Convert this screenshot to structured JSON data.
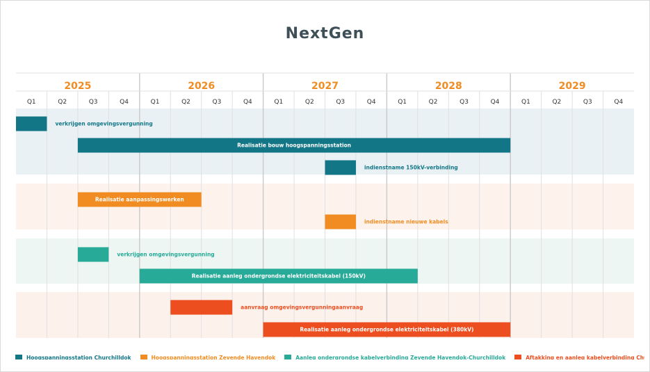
{
  "chart_data": {
    "type": "gantt",
    "title": "NextGen",
    "years": [
      "2025",
      "2026",
      "2027",
      "2028",
      "2029"
    ],
    "quarters": [
      "Q1",
      "Q2",
      "Q3",
      "Q4"
    ],
    "timeline_start": "2025-Q1",
    "timeline_end": "2029-Q4",
    "colors": {
      "year_label": "#f08c22",
      "grid": "#e0e0e0",
      "year_divider": "#c9c9c9"
    },
    "groups": [
      {
        "name": "Hoogspanningsstation Churchilldok",
        "color": "#127687",
        "band_color": "#e9f1f4",
        "tasks": [
          {
            "label": "verkrijgen omgevingsvergunning",
            "start": "2025-Q1",
            "end": "2025-Q1",
            "label_position": "right"
          },
          {
            "label": "Realisatie bouw hoogspanningsstation",
            "start": "2025-Q3",
            "end": "2028-Q4",
            "label_position": "inside"
          },
          {
            "label": "indienstname 150kV-verbinding",
            "start": "2027-Q3",
            "end": "2027-Q3",
            "label_position": "right"
          }
        ]
      },
      {
        "name": "Hoogspanningsstation Zevende Havendok",
        "color": "#f08c22",
        "band_color": "#fdf3ec",
        "tasks": [
          {
            "label": "Realisatie aanpassingswerken",
            "start": "2025-Q3",
            "end": "2026-Q2",
            "label_position": "inside"
          },
          {
            "label": "indienstname nieuwe kabels",
            "start": "2027-Q3",
            "end": "2027-Q3",
            "label_position": "right"
          }
        ]
      },
      {
        "name": "Aanleg ondergrondse kabelverbinding Zevende Havendok-Churchilldok",
        "color": "#27aa97",
        "band_color": "#edf6f3",
        "tasks": [
          {
            "label": "verkrijgen omgevingsvergunning",
            "start": "2025-Q3",
            "end": "2025-Q3",
            "label_position": "right"
          },
          {
            "label": "Realisatie aanleg ondergrondse elektriciteitskabel (150kV)",
            "start": "2026-Q1",
            "end": "2028-Q1",
            "label_position": "inside"
          }
        ]
      },
      {
        "name": "Aftakking en aanleg kabelverbinding Churchilldok-Lillo",
        "color": "#ed4e20",
        "band_color": "#fdf1ec",
        "tasks": [
          {
            "label": "aanvraag omgevingsvergunningaanvraag",
            "start": "2026-Q2",
            "end": "2026-Q3",
            "label_position": "right"
          },
          {
            "label": "Realisatie aanleg ondergrondse elektriciteitskabel (380kV)",
            "start": "2027-Q1",
            "end": "2028-Q4",
            "label_position": "inside"
          }
        ]
      }
    ]
  }
}
